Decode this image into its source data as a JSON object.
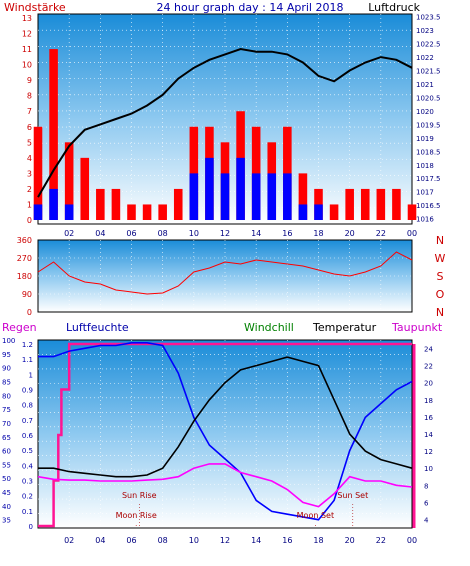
{
  "title": "24 hour graph day : 14 April 2018",
  "top_left_label": "Windstärke",
  "top_right_label": "Luftdruck",
  "wind_dir_labels": [
    "N",
    "W",
    "S",
    "O",
    "N"
  ],
  "bottom_labels": {
    "regen": "Regen",
    "luftfeuchte": "Luftfeuchte",
    "windchill": "Windchill",
    "temperatur": "Temperatur",
    "taupunkt": "Taupunkt"
  },
  "colors": {
    "wind": "#ff0000",
    "gust_blue": "#0000ff",
    "pressure": "#000000",
    "humidity": "#0000ff",
    "temperature": "#000000",
    "dewpoint": "#ff00ff",
    "windchill": "#008000",
    "rain": "#ff1493"
  },
  "annotations": [
    "Sun Rise",
    "Moon Rise",
    "Moon Set",
    "Sun Set"
  ],
  "chart_data": [
    {
      "type": "line",
      "x_ticks": [
        "02",
        "04",
        "06",
        "08",
        "10",
        "12",
        "14",
        "16",
        "18",
        "20",
        "22",
        "00"
      ],
      "left_ticks": [
        "0",
        "1",
        "2",
        "3",
        "4",
        "5",
        "6",
        "7",
        "8",
        "9",
        "10",
        "11",
        "12",
        "13"
      ],
      "right_ticks": [
        "1016",
        "1016.5",
        "1017",
        "1017.5",
        "1018",
        "1018.5",
        "1019",
        "1019.5",
        "1020",
        "1020.5",
        "1021",
        "1021.5",
        "1022",
        "1022.5",
        "1023",
        "1023.5"
      ],
      "ylim_left": [
        0,
        13
      ],
      "ylim_right": [
        1015.8,
        1023.6
      ],
      "series": [
        {
          "key": "pressure",
          "x": [
            0,
            1,
            2,
            3,
            4,
            5,
            6,
            7,
            8,
            9,
            10,
            11,
            12,
            13,
            14,
            15,
            16,
            17,
            18,
            19,
            20,
            21,
            22,
            23,
            24
          ],
          "values": [
            1016.8,
            1017.8,
            1018.7,
            1019.3,
            1019.5,
            1019.7,
            1019.9,
            1020.2,
            1020.6,
            1021.2,
            1021.6,
            1021.9,
            1022.1,
            1022.3,
            1022.2,
            1022.2,
            1022.1,
            1021.8,
            1021.3,
            1021.1,
            1021.5,
            1021.8,
            1022.0,
            1021.9,
            1021.6
          ]
        },
        {
          "key": "wind",
          "x": [
            0,
            1,
            2,
            3,
            4,
            5,
            6,
            7,
            8,
            9,
            10,
            11,
            12,
            13,
            14,
            15,
            16,
            17,
            18,
            19,
            20,
            21,
            22,
            23,
            24
          ],
          "values": [
            6,
            11,
            5,
            4,
            2,
            2,
            1,
            1,
            1,
            2,
            6,
            6,
            5,
            7,
            6,
            5,
            6,
            3,
            2,
            1,
            2,
            2,
            2,
            2,
            1
          ]
        },
        {
          "key": "gust_blue",
          "x": [
            0,
            1,
            2,
            3,
            4,
            5,
            6,
            7,
            8,
            9,
            10,
            11,
            12,
            13,
            14,
            15,
            16,
            17,
            18,
            19,
            20,
            21,
            22,
            23,
            24
          ],
          "values": [
            1,
            2,
            1,
            0,
            0,
            0,
            0,
            0,
            0,
            0,
            3,
            4,
            3,
            4,
            3,
            3,
            3,
            1,
            1,
            0,
            0,
            0,
            0,
            0,
            0
          ]
        }
      ]
    },
    {
      "type": "scatter",
      "x_ticks": [],
      "left_ticks": [
        "0",
        "90",
        "180",
        "270",
        "360"
      ],
      "ylim": [
        0,
        360
      ],
      "series": [
        {
          "key": "wind_direction",
          "x": [
            0,
            1,
            2,
            3,
            4,
            5,
            6,
            7,
            8,
            9,
            10,
            11,
            12,
            13,
            14,
            15,
            16,
            17,
            18,
            19,
            20,
            21,
            22,
            23,
            24
          ],
          "values": [
            200,
            250,
            180,
            150,
            140,
            110,
            100,
            90,
            95,
            130,
            200,
            220,
            250,
            240,
            260,
            250,
            240,
            230,
            210,
            190,
            180,
            200,
            230,
            300,
            260
          ]
        }
      ]
    },
    {
      "type": "line",
      "x_ticks": [
        "02",
        "04",
        "06",
        "08",
        "10",
        "12",
        "14",
        "16",
        "18",
        "20",
        "22",
        "00"
      ],
      "humidity_ticks": [
        "35",
        "40",
        "45",
        "50",
        "55",
        "60",
        "65",
        "70",
        "75",
        "80",
        "85",
        "90",
        "95",
        "100"
      ],
      "rain_ticks": [
        "0",
        "0.1",
        "0.2",
        "0.3",
        "0.4",
        "0.5",
        "0.6",
        "0.7",
        "0.8",
        "0.9",
        "1",
        "1.1",
        "1.2"
      ],
      "temp_ticks": [
        "4",
        "6",
        "8",
        "10",
        "12",
        "14",
        "16",
        "18",
        "20",
        "22",
        "24"
      ],
      "ylim_humidity": [
        32,
        100
      ],
      "ylim_temp": [
        3,
        25
      ],
      "series": [
        {
          "key": "humidity",
          "x": [
            0,
            1,
            2,
            3,
            4,
            5,
            6,
            7,
            8,
            9,
            10,
            11,
            12,
            13,
            14,
            15,
            16,
            17,
            18,
            19,
            20,
            21,
            22,
            23,
            24
          ],
          "values": [
            94,
            94,
            96,
            97,
            98,
            98,
            99,
            99,
            98,
            88,
            72,
            62,
            57,
            52,
            42,
            38,
            37,
            36,
            35,
            42,
            60,
            72,
            77,
            82,
            85
          ]
        },
        {
          "key": "temperature",
          "x": [
            0,
            1,
            2,
            3,
            4,
            5,
            6,
            7,
            8,
            9,
            10,
            11,
            12,
            13,
            14,
            15,
            16,
            17,
            18,
            19,
            20,
            21,
            22,
            23,
            24
          ],
          "values": [
            10,
            10,
            9.6,
            9.4,
            9.2,
            9.0,
            9.0,
            9.2,
            10,
            12.5,
            15.5,
            18,
            20,
            21.5,
            22,
            22.5,
            23,
            22.5,
            22,
            18,
            14,
            12,
            11,
            10.5,
            10
          ]
        },
        {
          "key": "dewpoint",
          "x": [
            0,
            1,
            2,
            3,
            4,
            5,
            6,
            7,
            8,
            9,
            10,
            11,
            12,
            13,
            14,
            15,
            16,
            17,
            18,
            19,
            20,
            21,
            22,
            23,
            24
          ],
          "values": [
            9.0,
            8.7,
            8.6,
            8.6,
            8.5,
            8.5,
            8.5,
            8.6,
            8.7,
            9.0,
            10.0,
            10.5,
            10.5,
            9.5,
            9.0,
            8.5,
            7.5,
            6.0,
            5.5,
            7.0,
            9.0,
            8.5,
            8.5,
            8.0,
            7.8
          ]
        },
        {
          "key": "rain",
          "x": [
            0,
            0.8,
            1.0,
            1.3,
            1.5,
            2.0,
            3,
            24
          ],
          "values": [
            0,
            0,
            0.3,
            0.6,
            0.9,
            1.2,
            1.2,
            1.2
          ]
        }
      ]
    }
  ]
}
